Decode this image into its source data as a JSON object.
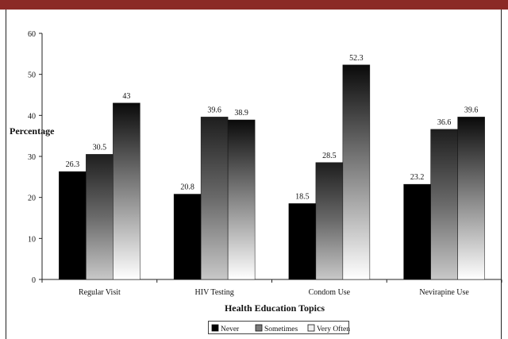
{
  "chart_data": {
    "type": "bar",
    "title": "",
    "xlabel": "Health Education Topics",
    "ylabel": "Percentage",
    "ylim": [
      0,
      60
    ],
    "yticks": [
      0,
      10,
      20,
      30,
      40,
      50,
      60
    ],
    "categories": [
      "Regular Visit",
      "HIV Testing",
      "Condom Use",
      "Nevirapine Use"
    ],
    "series": [
      {
        "name": "Never",
        "values": [
          26.3,
          20.8,
          18.5,
          23.2
        ],
        "data_labels": [
          "26.3",
          "20.8",
          "18.5",
          "23.2"
        ]
      },
      {
        "name": "Sometimes",
        "values": [
          30.5,
          39.6,
          28.5,
          36.6
        ],
        "data_labels": [
          "30.5",
          "39.6",
          "28.5",
          "36.6"
        ]
      },
      {
        "name": "Very Often",
        "values": [
          43,
          38.9,
          52.3,
          39.6
        ],
        "data_labels": [
          "43",
          "38.9",
          "52.3",
          "39.6"
        ]
      }
    ],
    "grid": false,
    "legend_position": "bottom"
  },
  "header_bar_color": "#8b2a26"
}
